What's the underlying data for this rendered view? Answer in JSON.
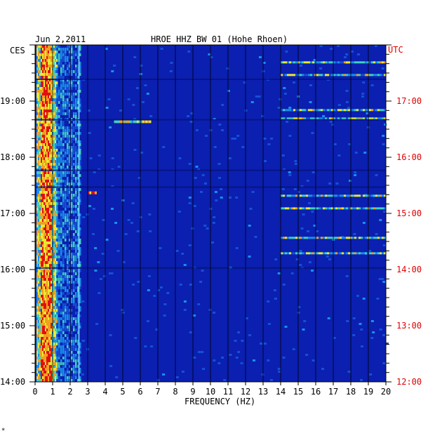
{
  "header": {
    "date": "Jun 2,2011",
    "station": "HROE HHZ BW 01 (Hohe Rhoen)"
  },
  "left_tz": "CES",
  "right_tz": "UTC",
  "footer_mark": "*",
  "colors": {
    "background_blue": "#0b1fb0",
    "left_labels": "#000000",
    "right_labels": "#e00000"
  },
  "chart_data": {
    "type": "heatmap",
    "title": "HROE HHZ BW 01 (Hohe Rhoen)",
    "xlabel": "FREQUENCY (HZ)",
    "xlim": [
      0,
      20
    ],
    "x_ticks": [
      "0",
      "1",
      "2",
      "3",
      "4",
      "5",
      "6",
      "7",
      "8",
      "9",
      "10",
      "11",
      "12",
      "13",
      "14",
      "15",
      "16",
      "17",
      "18",
      "19",
      "20"
    ],
    "y_ticks_left": [
      "19:00",
      "18:00",
      "17:00",
      "16:00",
      "15:00",
      "14:00"
    ],
    "y_ticks_right": [
      "17:00",
      "16:00",
      "15:00",
      "14:00",
      "13:00",
      "12:00"
    ],
    "y_tick_hours_left": [
      19,
      18,
      17,
      16,
      15,
      14
    ],
    "time_range_left": [
      "14:00",
      "20:00"
    ],
    "grid": "vertical lines at each 1 Hz",
    "features": [
      {
        "freq_range": [
          0.2,
          1.0
        ],
        "time_range": [
          "14:00",
          "20:00"
        ],
        "intensity": "high"
      },
      {
        "freq": 2.5,
        "time_range": [
          "14:00",
          "20:00"
        ],
        "intensity": "medium"
      },
      {
        "freq_range": [
          3.0,
          3.5
        ],
        "time": "17:22",
        "intensity": "high"
      },
      {
        "freq_range": [
          4.5,
          6.5
        ],
        "time": "18:38",
        "intensity": "medium"
      },
      {
        "freq_range": [
          14.0,
          20.0
        ],
        "time_range": [
          "15:40",
          "19:50"
        ],
        "intensity": "medium"
      }
    ]
  }
}
